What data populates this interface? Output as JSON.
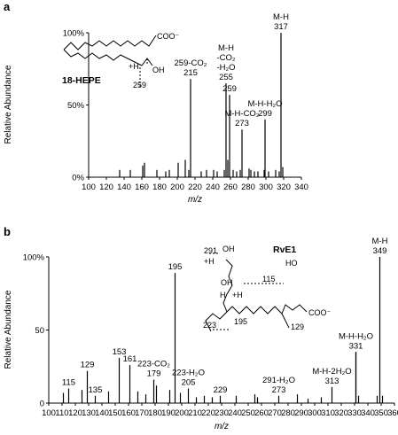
{
  "chart_data": [
    {
      "type": "bar",
      "panel": "a",
      "xlabel": "m/z",
      "ylabel": "Relative Abundance",
      "xlim": [
        100,
        340
      ],
      "ylim": [
        0,
        100
      ],
      "xticks": [
        "100",
        "120",
        "140",
        "160",
        "180",
        "200",
        "220",
        "240",
        "260",
        "280",
        "300",
        "320",
        "340"
      ],
      "yticks": [
        "0%",
        "50%",
        "100%"
      ],
      "compound": "18-HEPE",
      "peaks": [
        {
          "x": 317,
          "y": 100
        },
        {
          "x": 299,
          "y": 40
        },
        {
          "x": 273,
          "y": 33
        },
        {
          "x": 259,
          "y": 57
        },
        {
          "x": 255,
          "y": 65
        },
        {
          "x": 215,
          "y": 68
        },
        {
          "x": 298,
          "y": 5
        },
        {
          "x": 319,
          "y": 7
        },
        {
          "x": 201,
          "y": 10
        },
        {
          "x": 209,
          "y": 12
        },
        {
          "x": 213,
          "y": 5
        },
        {
          "x": 257,
          "y": 12
        },
        {
          "x": 271,
          "y": 5
        },
        {
          "x": 281,
          "y": 6
        },
        {
          "x": 283,
          "y": 5
        },
        {
          "x": 163,
          "y": 10
        },
        {
          "x": 161,
          "y": 8
        },
        {
          "x": 135,
          "y": 5
        },
        {
          "x": 147,
          "y": 5
        },
        {
          "x": 177,
          "y": 5
        },
        {
          "x": 187,
          "y": 4
        },
        {
          "x": 191,
          "y": 5
        },
        {
          "x": 227,
          "y": 4
        },
        {
          "x": 233,
          "y": 5
        },
        {
          "x": 241,
          "y": 5
        },
        {
          "x": 245,
          "y": 4
        },
        {
          "x": 253,
          "y": 5
        },
        {
          "x": 263,
          "y": 5
        },
        {
          "x": 267,
          "y": 4
        },
        {
          "x": 287,
          "y": 4
        },
        {
          "x": 291,
          "y": 4
        },
        {
          "x": 303,
          "y": 4
        },
        {
          "x": 311,
          "y": 5
        },
        {
          "x": 315,
          "y": 4
        }
      ],
      "annotations": [
        {
          "lines": [
            "M-H",
            "317"
          ],
          "x": 317,
          "y": 100
        },
        {
          "lines": [
            "M-H",
            "-CO₂",
            "-H₂O",
            "255"
          ],
          "x": 255,
          "y": 65
        },
        {
          "lines": [
            "259-CO₂",
            "215"
          ],
          "x": 215,
          "y": 68
        },
        {
          "lines": [
            "259"
          ],
          "x": 259,
          "y": 57
        },
        {
          "lines": [
            "M-H-CO₂",
            "273"
          ],
          "x": 273,
          "y": 33
        },
        {
          "lines": [
            "M-H-H₂O",
            "299"
          ],
          "x": 299,
          "y": 40
        }
      ],
      "structure_labels": [
        "COO⁻",
        "+H",
        "OH",
        "259"
      ]
    },
    {
      "type": "bar",
      "panel": "b",
      "xlabel": "m/z",
      "ylabel": "Relative Abundance",
      "xlim": [
        100,
        360
      ],
      "ylim": [
        0,
        100
      ],
      "xticks": [
        "100",
        "110",
        "120",
        "130",
        "140",
        "150",
        "160",
        "170",
        "180",
        "190",
        "200",
        "210",
        "220",
        "230",
        "240",
        "250",
        "260",
        "270",
        "280",
        "290",
        "300",
        "310",
        "320",
        "330",
        "340",
        "350",
        "360"
      ],
      "yticks": [
        "0",
        "50",
        "100%"
      ],
      "compound": "RvE1",
      "peaks": [
        {
          "x": 349,
          "y": 100
        },
        {
          "x": 331,
          "y": 35
        },
        {
          "x": 313,
          "y": 11
        },
        {
          "x": 195,
          "y": 89
        },
        {
          "x": 153,
          "y": 31
        },
        {
          "x": 161,
          "y": 26
        },
        {
          "x": 129,
          "y": 22
        },
        {
          "x": 179,
          "y": 16
        },
        {
          "x": 115,
          "y": 10
        },
        {
          "x": 135,
          "y": 5
        },
        {
          "x": 205,
          "y": 10
        },
        {
          "x": 229,
          "y": 5
        },
        {
          "x": 273,
          "y": 5
        },
        {
          "x": 111,
          "y": 7
        },
        {
          "x": 125,
          "y": 9
        },
        {
          "x": 145,
          "y": 8
        },
        {
          "x": 167,
          "y": 8
        },
        {
          "x": 173,
          "y": 6
        },
        {
          "x": 181,
          "y": 12
        },
        {
          "x": 191,
          "y": 9
        },
        {
          "x": 199,
          "y": 7
        },
        {
          "x": 211,
          "y": 4
        },
        {
          "x": 217,
          "y": 5
        },
        {
          "x": 223,
          "y": 4
        },
        {
          "x": 241,
          "y": 5
        },
        {
          "x": 255,
          "y": 6
        },
        {
          "x": 257,
          "y": 4
        },
        {
          "x": 287,
          "y": 6
        },
        {
          "x": 295,
          "y": 3
        },
        {
          "x": 305,
          "y": 4
        },
        {
          "x": 331,
          "y": 35
        },
        {
          "x": 333,
          "y": 5
        },
        {
          "x": 347,
          "y": 5
        },
        {
          "x": 351,
          "y": 5
        }
      ],
      "annotations": [
        {
          "lines": [
            "M-H",
            "349"
          ],
          "x": 349,
          "y": 100
        },
        {
          "lines": [
            "M-H-H₂O",
            "331"
          ],
          "x": 331,
          "y": 35
        },
        {
          "lines": [
            "M-H-2H₂O",
            "313"
          ],
          "x": 313,
          "y": 11
        },
        {
          "lines": [
            "195"
          ],
          "x": 195,
          "y": 89
        },
        {
          "lines": [
            "153"
          ],
          "x": 153,
          "y": 31
        },
        {
          "lines": [
            "161"
          ],
          "x": 161,
          "y": 26
        },
        {
          "lines": [
            "129"
          ],
          "x": 129,
          "y": 22
        },
        {
          "lines": [
            "115"
          ],
          "x": 115,
          "y": 10
        },
        {
          "lines": [
            "135"
          ],
          "x": 135,
          "y": 5
        },
        {
          "lines": [
            "223-CO₂",
            "179"
          ],
          "x": 179,
          "y": 16
        },
        {
          "lines": [
            "223-H₂O",
            "205"
          ],
          "x": 205,
          "y": 10
        },
        {
          "lines": [
            "229"
          ],
          "x": 229,
          "y": 5
        },
        {
          "lines": [
            "291-H₂O",
            "273"
          ],
          "x": 273,
          "y": 5
        }
      ],
      "structure_labels": [
        "291",
        "+H",
        "OH",
        "HO",
        "115",
        "OH",
        "H",
        "+H",
        "223",
        "195",
        "COO⁻",
        "129"
      ]
    }
  ]
}
